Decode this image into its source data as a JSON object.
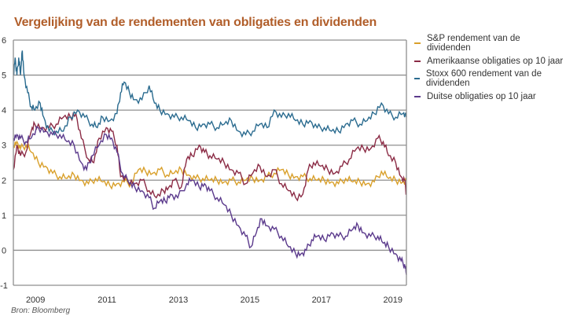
{
  "title": "Vergelijking van de rendementen van obligaties en dividenden",
  "source": "Bron: Bloomberg",
  "chart_data": {
    "type": "line",
    "title": "Vergelijking van de rendementen van obligaties en dividenden",
    "xlabel": "",
    "ylabel": "",
    "xlim": [
      2008.6,
      2019.6
    ],
    "ylim": [
      -1,
      6
    ],
    "yticks": [
      -1,
      0,
      1,
      2,
      3,
      4,
      5,
      6
    ],
    "xticks": [
      2009,
      2011,
      2013,
      2015,
      2017,
      2019
    ],
    "xtick_labels": [
      "2009",
      "2011",
      "2013",
      "2015",
      "2017",
      "2019"
    ],
    "grid": true,
    "legend_position": "right",
    "series": [
      {
        "name": "S&P rendement van de dividenden",
        "color": "#d9a02b",
        "points": [
          [
            2008.6,
            3.0
          ],
          [
            2008.7,
            3.1
          ],
          [
            2008.8,
            2.9
          ],
          [
            2008.95,
            3.0
          ],
          [
            2009.1,
            2.8
          ],
          [
            2009.3,
            2.5
          ],
          [
            2009.5,
            2.4
          ],
          [
            2009.7,
            2.2
          ],
          [
            2009.9,
            2.1
          ],
          [
            2010.1,
            2.05
          ],
          [
            2010.3,
            2.15
          ],
          [
            2010.5,
            2.0
          ],
          [
            2010.7,
            1.9
          ],
          [
            2010.9,
            2.05
          ],
          [
            2011.1,
            1.95
          ],
          [
            2011.3,
            1.85
          ],
          [
            2011.5,
            1.9
          ],
          [
            2011.7,
            1.95
          ],
          [
            2011.9,
            1.9
          ],
          [
            2012.1,
            2.3
          ],
          [
            2012.3,
            2.25
          ],
          [
            2012.5,
            2.2
          ],
          [
            2012.7,
            2.3
          ],
          [
            2012.9,
            2.15
          ],
          [
            2013.1,
            2.2
          ],
          [
            2013.3,
            2.3
          ],
          [
            2013.5,
            2.15
          ],
          [
            2013.7,
            2.05
          ],
          [
            2013.9,
            2.05
          ],
          [
            2014.1,
            2.0
          ],
          [
            2014.3,
            2.0
          ],
          [
            2014.5,
            1.95
          ],
          [
            2014.7,
            2.0
          ],
          [
            2014.9,
            1.95
          ],
          [
            2015.1,
            2.0
          ],
          [
            2015.3,
            2.05
          ],
          [
            2015.5,
            2.0
          ],
          [
            2015.7,
            2.1
          ],
          [
            2015.9,
            2.2
          ],
          [
            2016.1,
            2.3
          ],
          [
            2016.3,
            2.15
          ],
          [
            2016.5,
            2.1
          ],
          [
            2016.7,
            2.1
          ],
          [
            2016.9,
            2.05
          ],
          [
            2017.1,
            2.0
          ],
          [
            2017.3,
            2.0
          ],
          [
            2017.5,
            1.95
          ],
          [
            2017.7,
            1.9
          ],
          [
            2017.9,
            2.05
          ],
          [
            2018.1,
            1.95
          ],
          [
            2018.3,
            1.95
          ],
          [
            2018.5,
            1.9
          ],
          [
            2018.7,
            1.95
          ],
          [
            2018.9,
            2.25
          ],
          [
            2019.1,
            2.05
          ],
          [
            2019.3,
            2.0
          ],
          [
            2019.5,
            1.95
          ],
          [
            2019.6,
            2.0
          ]
        ]
      },
      {
        "name": "Amerikaanse obligaties op 10 jaar",
        "color": "#8b2b45",
        "points": [
          [
            2008.6,
            2.3
          ],
          [
            2008.7,
            3.0
          ],
          [
            2008.8,
            2.7
          ],
          [
            2008.95,
            2.8
          ],
          [
            2009.1,
            3.4
          ],
          [
            2009.2,
            3.6
          ],
          [
            2009.4,
            3.5
          ],
          [
            2009.6,
            3.5
          ],
          [
            2009.8,
            3.6
          ],
          [
            2010.0,
            3.8
          ],
          [
            2010.2,
            3.8
          ],
          [
            2010.35,
            3.9
          ],
          [
            2010.5,
            3.2
          ],
          [
            2010.7,
            2.6
          ],
          [
            2010.85,
            2.5
          ],
          [
            2011.0,
            3.2
          ],
          [
            2011.2,
            3.5
          ],
          [
            2011.35,
            3.4
          ],
          [
            2011.5,
            3.0
          ],
          [
            2011.6,
            2.1
          ],
          [
            2011.8,
            2.0
          ],
          [
            2012.0,
            1.9
          ],
          [
            2012.2,
            2.0
          ],
          [
            2012.4,
            1.7
          ],
          [
            2012.6,
            1.5
          ],
          [
            2012.8,
            1.7
          ],
          [
            2012.95,
            1.8
          ],
          [
            2013.1,
            2.0
          ],
          [
            2013.3,
            1.8
          ],
          [
            2013.45,
            2.6
          ],
          [
            2013.6,
            2.7
          ],
          [
            2013.8,
            3.0
          ],
          [
            2013.95,
            2.8
          ],
          [
            2014.1,
            2.7
          ],
          [
            2014.3,
            2.6
          ],
          [
            2014.5,
            2.5
          ],
          [
            2014.7,
            2.3
          ],
          [
            2014.9,
            2.2
          ],
          [
            2015.1,
            1.9
          ],
          [
            2015.3,
            2.2
          ],
          [
            2015.5,
            2.4
          ],
          [
            2015.7,
            2.1
          ],
          [
            2015.9,
            2.3
          ],
          [
            2016.1,
            1.9
          ],
          [
            2016.3,
            1.7
          ],
          [
            2016.5,
            1.5
          ],
          [
            2016.7,
            1.6
          ],
          [
            2016.85,
            2.3
          ],
          [
            2017.0,
            2.5
          ],
          [
            2017.2,
            2.4
          ],
          [
            2017.4,
            2.3
          ],
          [
            2017.6,
            2.2
          ],
          [
            2017.8,
            2.4
          ],
          [
            2018.0,
            2.6
          ],
          [
            2018.2,
            2.9
          ],
          [
            2018.4,
            2.9
          ],
          [
            2018.6,
            2.9
          ],
          [
            2018.8,
            3.2
          ],
          [
            2018.95,
            3.1
          ],
          [
            2019.1,
            2.7
          ],
          [
            2019.3,
            2.5
          ],
          [
            2019.45,
            2.1
          ],
          [
            2019.55,
            2.0
          ],
          [
            2019.6,
            1.6
          ]
        ]
      },
      {
        "name": "Stoxx 600 rendement van de dividenden",
        "color": "#2a6b8f",
        "points": [
          [
            2008.6,
            5.0
          ],
          [
            2008.65,
            5.5
          ],
          [
            2008.7,
            5.0
          ],
          [
            2008.75,
            5.5
          ],
          [
            2008.8,
            5.0
          ],
          [
            2008.85,
            5.7
          ],
          [
            2008.9,
            5.0
          ],
          [
            2009.0,
            4.5
          ],
          [
            2009.1,
            4.1
          ],
          [
            2009.2,
            4.0
          ],
          [
            2009.35,
            4.2
          ],
          [
            2009.45,
            3.8
          ],
          [
            2009.6,
            3.4
          ],
          [
            2009.8,
            3.4
          ],
          [
            2010.0,
            3.4
          ],
          [
            2010.2,
            3.8
          ],
          [
            2010.4,
            4.0
          ],
          [
            2010.6,
            3.8
          ],
          [
            2010.8,
            3.6
          ],
          [
            2010.95,
            3.5
          ],
          [
            2011.1,
            3.8
          ],
          [
            2011.3,
            3.7
          ],
          [
            2011.5,
            3.9
          ],
          [
            2011.6,
            4.5
          ],
          [
            2011.7,
            4.8
          ],
          [
            2011.85,
            4.5
          ],
          [
            2012.0,
            4.3
          ],
          [
            2012.2,
            4.3
          ],
          [
            2012.4,
            4.7
          ],
          [
            2012.55,
            4.2
          ],
          [
            2012.7,
            4.0
          ],
          [
            2012.9,
            3.9
          ],
          [
            2013.1,
            3.8
          ],
          [
            2013.3,
            3.8
          ],
          [
            2013.5,
            3.7
          ],
          [
            2013.7,
            3.5
          ],
          [
            2013.9,
            3.6
          ],
          [
            2014.1,
            3.6
          ],
          [
            2014.3,
            3.5
          ],
          [
            2014.5,
            3.6
          ],
          [
            2014.7,
            3.7
          ],
          [
            2014.9,
            3.4
          ],
          [
            2015.1,
            3.3
          ],
          [
            2015.3,
            3.4
          ],
          [
            2015.5,
            3.6
          ],
          [
            2015.7,
            3.5
          ],
          [
            2015.9,
            4.0
          ],
          [
            2016.1,
            3.8
          ],
          [
            2016.3,
            3.9
          ],
          [
            2016.5,
            3.7
          ],
          [
            2016.7,
            3.6
          ],
          [
            2016.9,
            3.7
          ],
          [
            2017.1,
            3.5
          ],
          [
            2017.3,
            3.5
          ],
          [
            2017.5,
            3.4
          ],
          [
            2017.7,
            3.4
          ],
          [
            2017.9,
            3.6
          ],
          [
            2018.1,
            3.7
          ],
          [
            2018.3,
            3.6
          ],
          [
            2018.5,
            3.7
          ],
          [
            2018.7,
            3.9
          ],
          [
            2018.9,
            4.2
          ],
          [
            2019.1,
            3.9
          ],
          [
            2019.3,
            3.8
          ],
          [
            2019.5,
            3.9
          ],
          [
            2019.6,
            3.8
          ]
        ]
      },
      {
        "name": "Duitse obligaties op 10 jaar",
        "color": "#5b3a8c",
        "points": [
          [
            2008.6,
            3.2
          ],
          [
            2008.7,
            3.3
          ],
          [
            2008.8,
            3.2
          ],
          [
            2008.95,
            3.1
          ],
          [
            2009.1,
            3.2
          ],
          [
            2009.3,
            3.5
          ],
          [
            2009.5,
            3.4
          ],
          [
            2009.7,
            3.3
          ],
          [
            2009.9,
            3.3
          ],
          [
            2010.1,
            3.1
          ],
          [
            2010.3,
            3.0
          ],
          [
            2010.5,
            2.5
          ],
          [
            2010.65,
            2.3
          ],
          [
            2010.8,
            2.7
          ],
          [
            2011.0,
            3.0
          ],
          [
            2011.2,
            3.3
          ],
          [
            2011.35,
            3.2
          ],
          [
            2011.5,
            2.8
          ],
          [
            2011.65,
            2.2
          ],
          [
            2011.85,
            1.9
          ],
          [
            2012.0,
            1.8
          ],
          [
            2012.2,
            1.7
          ],
          [
            2012.4,
            1.5
          ],
          [
            2012.55,
            1.2
          ],
          [
            2012.7,
            1.4
          ],
          [
            2012.85,
            1.4
          ],
          [
            2013.0,
            1.6
          ],
          [
            2013.2,
            1.5
          ],
          [
            2013.45,
            1.9
          ],
          [
            2013.6,
            2.0
          ],
          [
            2013.8,
            1.8
          ],
          [
            2013.95,
            1.9
          ],
          [
            2014.1,
            1.7
          ],
          [
            2014.3,
            1.5
          ],
          [
            2014.5,
            1.3
          ],
          [
            2014.7,
            1.0
          ],
          [
            2014.9,
            0.7
          ],
          [
            2015.1,
            0.4
          ],
          [
            2015.25,
            0.1
          ],
          [
            2015.4,
            0.5
          ],
          [
            2015.55,
            0.9
          ],
          [
            2015.7,
            0.7
          ],
          [
            2015.9,
            0.6
          ],
          [
            2016.1,
            0.4
          ],
          [
            2016.3,
            0.1
          ],
          [
            2016.5,
            -0.1
          ],
          [
            2016.65,
            -0.1
          ],
          [
            2016.8,
            0.0
          ],
          [
            2016.95,
            0.3
          ],
          [
            2017.1,
            0.4
          ],
          [
            2017.3,
            0.3
          ],
          [
            2017.5,
            0.5
          ],
          [
            2017.7,
            0.4
          ],
          [
            2017.9,
            0.4
          ],
          [
            2018.1,
            0.6
          ],
          [
            2018.25,
            0.7
          ],
          [
            2018.4,
            0.5
          ],
          [
            2018.6,
            0.4
          ],
          [
            2018.8,
            0.4
          ],
          [
            2018.95,
            0.2
          ],
          [
            2019.1,
            0.1
          ],
          [
            2019.3,
            -0.1
          ],
          [
            2019.45,
            -0.3
          ],
          [
            2019.55,
            -0.4
          ],
          [
            2019.6,
            -0.7
          ]
        ]
      }
    ]
  }
}
